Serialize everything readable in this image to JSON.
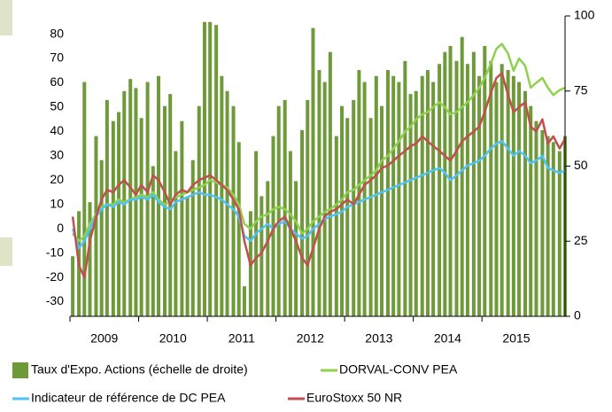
{
  "chart_data": {
    "type": "bar-line",
    "x": [
      2009.04,
      2009.13,
      2009.21,
      2009.29,
      2009.38,
      2009.46,
      2009.54,
      2009.63,
      2009.71,
      2009.79,
      2009.88,
      2009.96,
      2010.04,
      2010.13,
      2010.21,
      2010.29,
      2010.38,
      2010.46,
      2010.54,
      2010.63,
      2010.71,
      2010.79,
      2010.88,
      2010.96,
      2011.04,
      2011.13,
      2011.21,
      2011.29,
      2011.38,
      2011.46,
      2011.54,
      2011.63,
      2011.71,
      2011.79,
      2011.88,
      2011.96,
      2012.04,
      2012.13,
      2012.21,
      2012.29,
      2012.38,
      2012.46,
      2012.54,
      2012.63,
      2012.71,
      2012.79,
      2012.88,
      2012.96,
      2013.04,
      2013.13,
      2013.21,
      2013.29,
      2013.38,
      2013.46,
      2013.54,
      2013.63,
      2013.71,
      2013.79,
      2013.88,
      2013.96,
      2014.04,
      2014.13,
      2014.21,
      2014.29,
      2014.38,
      2014.46,
      2014.54,
      2014.63,
      2014.71,
      2014.79,
      2014.88,
      2014.96,
      2015.04,
      2015.13,
      2015.21,
      2015.29,
      2015.38,
      2015.46,
      2015.54,
      2015.63,
      2015.71,
      2015.79,
      2015.88,
      2015.96,
      2016.04,
      2016.13,
      2016.21
    ],
    "xlim": [
      2009,
      2016.21
    ],
    "xticks": [
      {
        "value": 2009.5,
        "label": "2009"
      },
      {
        "value": 2010.5,
        "label": "2010"
      },
      {
        "value": 2011.5,
        "label": "2011"
      },
      {
        "value": 2012.5,
        "label": "2012"
      },
      {
        "value": 2013.5,
        "label": "2013"
      },
      {
        "value": 2014.5,
        "label": "2014"
      },
      {
        "value": 2015.5,
        "label": "2015"
      }
    ],
    "ylim": [
      -36,
      87.5
    ],
    "yticks": [
      -30,
      -20,
      -10,
      0,
      10,
      20,
      30,
      40,
      50,
      60,
      70,
      80
    ],
    "y2lim": [
      0,
      100
    ],
    "y2ticks": [
      0,
      25,
      50,
      75,
      100
    ],
    "series": [
      {
        "name": "Taux d'Expo. Actions (échelle de droite)",
        "type": "bar",
        "axis": "y2",
        "color": "#6e9a3a",
        "values": [
          20,
          35,
          78,
          38,
          60,
          52,
          72,
          65,
          68,
          75,
          79,
          76,
          66,
          78,
          50,
          80,
          70,
          74,
          55,
          65,
          40,
          52,
          70,
          98,
          98,
          97,
          80,
          75,
          70,
          58,
          10,
          35,
          55,
          40,
          45,
          60,
          70,
          72,
          55,
          45,
          62,
          72,
          96,
          82,
          78,
          88,
          60,
          70,
          66,
          72,
          82,
          78,
          66,
          80,
          70,
          82,
          80,
          78,
          85,
          74,
          75,
          80,
          82,
          78,
          84,
          88,
          90,
          85,
          93,
          84,
          88,
          80,
          90,
          85,
          78,
          84,
          82,
          80,
          78,
          75,
          70,
          65,
          62,
          60,
          58,
          55,
          60
        ]
      },
      {
        "name": "DORVAL-CONV PEA",
        "type": "line",
        "color": "#8fd14f",
        "values": [
          -2,
          -5,
          -3,
          2,
          6,
          9,
          10,
          10,
          12,
          11,
          12,
          13,
          14,
          13,
          15,
          12,
          10,
          11,
          13,
          14,
          15,
          16,
          17,
          18,
          20,
          19,
          18,
          17,
          14,
          10,
          2,
          0,
          3,
          5,
          6,
          8,
          9,
          8,
          6,
          3,
          -2,
          0,
          3,
          5,
          7,
          8,
          10,
          12,
          15,
          16,
          18,
          20,
          22,
          24,
          28,
          30,
          33,
          36,
          40,
          42,
          45,
          47,
          48,
          50,
          52,
          50,
          47,
          48,
          50,
          52,
          55,
          58,
          62,
          68,
          74,
          76,
          72,
          65,
          70,
          67,
          58,
          60,
          62,
          58,
          55,
          57,
          58
        ]
      },
      {
        "name": "Indicateur de référence de DC PEA",
        "type": "line",
        "color": "#4fc3f7",
        "values": [
          0,
          -8,
          -5,
          0,
          5,
          8,
          10,
          9,
          11,
          10,
          12,
          12,
          13,
          12,
          14,
          11,
          9,
          8,
          11,
          12,
          13,
          14,
          15,
          14,
          14,
          13,
          12,
          10,
          8,
          5,
          -3,
          -5,
          -2,
          0,
          2,
          0,
          2,
          3,
          0,
          -2,
          -4,
          -3,
          0,
          2,
          4,
          5,
          6,
          7,
          9,
          10,
          11,
          12,
          13,
          14,
          15,
          16,
          17,
          18,
          19,
          20,
          21,
          22,
          23,
          24,
          25,
          23,
          20,
          22,
          24,
          26,
          27,
          28,
          30,
          33,
          35,
          36,
          33,
          30,
          32,
          30,
          27,
          28,
          30,
          25,
          24,
          23,
          24
        ]
      },
      {
        "name": "EuroStoxx 50 NR",
        "type": "line",
        "color": "#c0504d",
        "values": [
          5,
          -15,
          -20,
          -5,
          5,
          12,
          16,
          15,
          18,
          20,
          17,
          14,
          18,
          15,
          22,
          20,
          15,
          10,
          14,
          16,
          15,
          18,
          20,
          21,
          22,
          20,
          18,
          16,
          12,
          8,
          -5,
          -15,
          -12,
          -10,
          -5,
          0,
          3,
          5,
          0,
          -5,
          -12,
          -15,
          -8,
          0,
          5,
          7,
          8,
          10,
          12,
          10,
          14,
          18,
          20,
          22,
          25,
          26,
          28,
          30,
          32,
          34,
          35,
          38,
          36,
          34,
          32,
          30,
          28,
          32,
          36,
          38,
          40,
          42,
          48,
          56,
          62,
          64,
          55,
          48,
          50,
          52,
          42,
          40,
          45,
          35,
          38,
          33,
          37
        ]
      }
    ]
  }
}
